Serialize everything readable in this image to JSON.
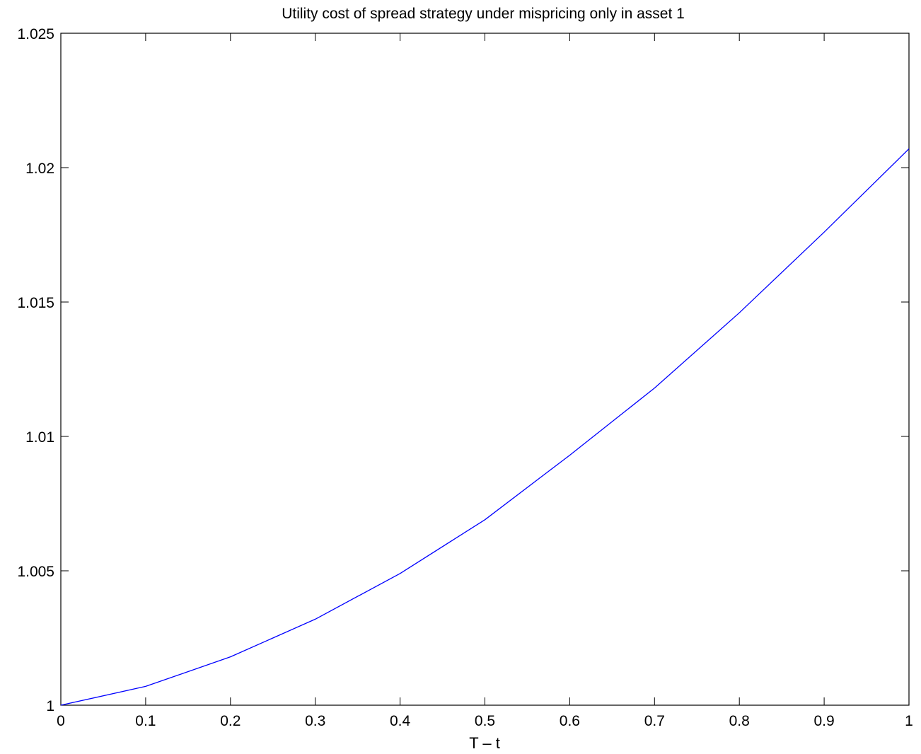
{
  "chart_data": {
    "type": "line",
    "title": "Utility cost of spread strategy under mispricing only in asset 1",
    "xlabel": "T – t",
    "ylabel": "",
    "xlim": [
      0,
      1
    ],
    "ylim": [
      1,
      1.025
    ],
    "xticks": [
      0,
      0.1,
      0.2,
      0.3,
      0.4,
      0.5,
      0.6,
      0.7,
      0.8,
      0.9,
      1
    ],
    "xtick_labels": [
      "0",
      "0.1",
      "0.2",
      "0.3",
      "0.4",
      "0.5",
      "0.6",
      "0.7",
      "0.8",
      "0.9",
      "1"
    ],
    "yticks": [
      1,
      1.005,
      1.01,
      1.015,
      1.02,
      1.025
    ],
    "ytick_labels": [
      "1",
      "1.005",
      "1.01",
      "1.015",
      "1.02",
      "1.025"
    ],
    "grid": false,
    "legend": "none",
    "series": [
      {
        "color": "#0000ff",
        "x": [
          0,
          0.1,
          0.2,
          0.3,
          0.4,
          0.5,
          0.6,
          0.7,
          0.8,
          0.9,
          1.0
        ],
        "y": [
          1.0,
          1.0007,
          1.0018,
          1.0032,
          1.0049,
          1.0069,
          1.0093,
          1.0118,
          1.0146,
          1.0176,
          1.0207
        ]
      }
    ]
  }
}
